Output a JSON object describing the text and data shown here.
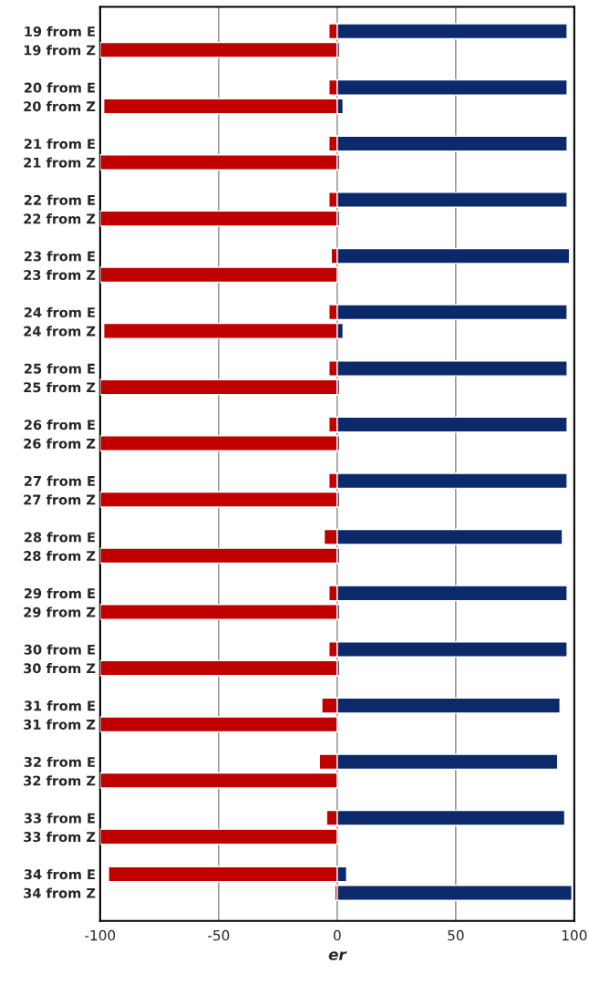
{
  "chart_data": {
    "type": "bar",
    "orientation": "horizontal",
    "stacked": true,
    "xlabel": "er",
    "categories": [
      "19 from E",
      "19 from Z",
      null,
      "20 from E",
      "20 from Z",
      null,
      "21 from E",
      "21 from Z",
      null,
      "22 from E",
      "22 from Z",
      null,
      "23 from E",
      "23 from Z",
      null,
      "24 from E",
      "24 from Z",
      null,
      "25 from E",
      "25 from Z",
      null,
      "26 from E",
      "26 from Z",
      null,
      "27 from E",
      "27 from Z",
      null,
      "28 from E",
      "28 from Z",
      null,
      "29 from E",
      "29 from Z",
      null,
      "30 from E",
      "30 from Z",
      null,
      "31 from E",
      "31 from Z",
      null,
      "32 from E",
      "32 from Z",
      null,
      "33 from E",
      "33 from Z",
      null,
      "34 from E",
      "34 from Z"
    ],
    "series": [
      {
        "color": "#c00000",
        "values": [
          -3.5,
          -100,
          null,
          -3.5,
          -98.5,
          null,
          -3.5,
          -100,
          null,
          -3.5,
          -100,
          null,
          -2.5,
          -100,
          null,
          -3.5,
          -98.5,
          null,
          -3.5,
          -100,
          null,
          -3.5,
          -100,
          null,
          -3.5,
          -100,
          null,
          -5.5,
          -100,
          null,
          -3.5,
          -100,
          null,
          -3.5,
          -100,
          null,
          -6.5,
          -100,
          null,
          -7.5,
          -100,
          null,
          -4.5,
          -100,
          null,
          -96.5,
          -1
        ]
      },
      {
        "color": "#0c2a6b",
        "values": [
          97,
          1,
          null,
          97,
          2.5,
          null,
          97,
          1,
          null,
          97,
          1,
          null,
          98,
          null,
          null,
          97,
          2.5,
          null,
          97,
          1,
          null,
          97,
          1,
          null,
          97,
          1,
          null,
          95,
          1,
          null,
          97,
          1,
          null,
          97,
          1,
          null,
          94,
          null,
          null,
          93,
          null,
          null,
          96,
          null,
          null,
          4,
          99
        ]
      }
    ],
    "xlim": [
      -100,
      100
    ],
    "xticks": [
      -100,
      -50,
      0,
      50,
      100
    ],
    "grid": "x",
    "legend": false
  }
}
